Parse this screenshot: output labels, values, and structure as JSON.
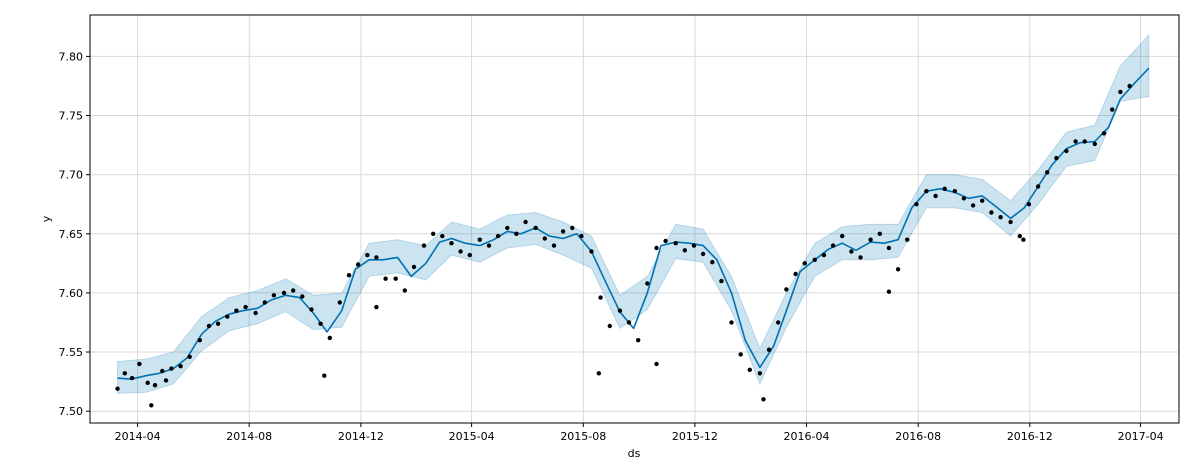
{
  "chart_data": {
    "type": "line",
    "title": "",
    "xlabel": "ds",
    "ylabel": "y",
    "xlim": [
      "2014-02-08",
      "2017-05-13"
    ],
    "ylim": [
      7.49,
      7.835
    ],
    "grid": true,
    "legend": "none",
    "colors": {
      "forecast_line": "#0072B2",
      "uncertainty_band": "#0072B2",
      "observations": "#000000",
      "grid": "#d9d9d9",
      "frame": "#000000"
    },
    "x_ticks": [
      {
        "date": "2014-04-01",
        "label": "2014-04"
      },
      {
        "date": "2014-08-01",
        "label": "2014-08"
      },
      {
        "date": "2014-12-01",
        "label": "2014-12"
      },
      {
        "date": "2015-04-01",
        "label": "2015-04"
      },
      {
        "date": "2015-08-01",
        "label": "2015-08"
      },
      {
        "date": "2015-12-01",
        "label": "2015-12"
      },
      {
        "date": "2016-04-01",
        "label": "2016-04"
      },
      {
        "date": "2016-08-01",
        "label": "2016-08"
      },
      {
        "date": "2016-12-01",
        "label": "2016-12"
      },
      {
        "date": "2017-04-01",
        "label": "2017-04"
      }
    ],
    "y_ticks": [
      {
        "value": 7.5,
        "label": "7.50"
      },
      {
        "value": 7.55,
        "label": "7.55"
      },
      {
        "value": 7.6,
        "label": "7.60"
      },
      {
        "value": 7.65,
        "label": "7.65"
      },
      {
        "value": 7.7,
        "label": "7.70"
      },
      {
        "value": 7.75,
        "label": "7.75"
      },
      {
        "value": 7.8,
        "label": "7.80"
      }
    ],
    "series": [
      {
        "type": "line",
        "x": [
          "2014-03-10",
          "2014-03-25",
          "2014-04-10",
          "2014-04-25",
          "2014-05-10",
          "2014-05-25",
          "2014-06-10",
          "2014-06-25",
          "2014-07-10",
          "2014-07-25",
          "2014-08-10",
          "2014-08-25",
          "2014-09-10",
          "2014-09-25",
          "2014-10-10",
          "2014-10-25",
          "2014-11-10",
          "2014-11-25",
          "2014-12-10",
          "2014-12-25",
          "2015-01-10",
          "2015-01-25",
          "2015-02-10",
          "2015-02-25",
          "2015-03-10",
          "2015-03-25",
          "2015-04-10",
          "2015-04-25",
          "2015-05-10",
          "2015-05-25",
          "2015-06-10",
          "2015-06-25",
          "2015-07-10",
          "2015-07-25",
          "2015-08-10",
          "2015-08-25",
          "2015-09-10",
          "2015-09-25",
          "2015-10-10",
          "2015-10-25",
          "2015-11-10",
          "2015-11-25",
          "2015-12-10",
          "2015-12-25",
          "2016-01-10",
          "2016-01-25",
          "2016-02-10",
          "2016-02-25",
          "2016-03-10",
          "2016-03-25",
          "2016-04-10",
          "2016-04-25",
          "2016-05-10",
          "2016-05-25",
          "2016-06-10",
          "2016-06-25",
          "2016-07-10",
          "2016-07-25",
          "2016-08-10",
          "2016-08-25",
          "2016-09-10",
          "2016-09-25",
          "2016-10-10",
          "2016-10-25",
          "2016-11-10",
          "2016-11-25",
          "2016-12-10",
          "2016-12-25",
          "2017-01-10",
          "2017-01-25",
          "2017-02-10",
          "2017-02-25",
          "2017-03-10",
          "2017-03-25",
          "2017-04-10"
        ],
        "y": [
          7.528,
          7.527,
          7.53,
          7.532,
          7.536,
          7.545,
          7.565,
          7.576,
          7.582,
          7.585,
          7.587,
          7.594,
          7.598,
          7.596,
          7.583,
          7.567,
          7.585,
          7.62,
          7.628,
          7.628,
          7.63,
          7.614,
          7.625,
          7.643,
          7.646,
          7.642,
          7.64,
          7.645,
          7.652,
          7.65,
          7.655,
          7.648,
          7.646,
          7.65,
          7.635,
          7.61,
          7.584,
          7.57,
          7.6,
          7.64,
          7.643,
          7.642,
          7.64,
          7.628,
          7.6,
          7.56,
          7.537,
          7.555,
          7.585,
          7.618,
          7.628,
          7.637,
          7.642,
          7.636,
          7.643,
          7.642,
          7.645,
          7.672,
          7.686,
          7.688,
          7.685,
          7.68,
          7.682,
          7.673,
          7.663,
          7.672,
          7.69,
          7.708,
          7.722,
          7.727,
          7.728,
          7.74,
          7.764,
          7.777,
          7.79
        ]
      },
      {
        "type": "area",
        "x": [
          "2014-03-10",
          "2014-04-10",
          "2014-05-10",
          "2014-06-10",
          "2014-07-10",
          "2014-08-10",
          "2014-09-10",
          "2014-10-10",
          "2014-11-10",
          "2014-12-10",
          "2015-01-10",
          "2015-02-10",
          "2015-03-10",
          "2015-04-10",
          "2015-05-10",
          "2015-06-10",
          "2015-07-10",
          "2015-08-10",
          "2015-09-10",
          "2015-10-10",
          "2015-11-10",
          "2015-12-10",
          "2016-01-10",
          "2016-02-10",
          "2016-03-10",
          "2016-04-10",
          "2016-05-10",
          "2016-06-10",
          "2016-07-10",
          "2016-08-10",
          "2016-09-10",
          "2016-10-10",
          "2016-11-10",
          "2016-12-10",
          "2017-01-10",
          "2017-02-10",
          "2017-03-10",
          "2017-04-10"
        ],
        "upper": [
          7.542,
          7.544,
          7.55,
          7.58,
          7.596,
          7.602,
          7.612,
          7.598,
          7.6,
          7.642,
          7.645,
          7.64,
          7.66,
          7.654,
          7.666,
          7.668,
          7.66,
          7.648,
          7.598,
          7.614,
          7.658,
          7.654,
          7.614,
          7.553,
          7.6,
          7.642,
          7.656,
          7.658,
          7.658,
          7.7,
          7.7,
          7.696,
          7.678,
          7.704,
          7.736,
          7.742,
          7.792,
          7.818
        ],
        "lower": [
          7.515,
          7.516,
          7.523,
          7.551,
          7.568,
          7.574,
          7.584,
          7.569,
          7.571,
          7.614,
          7.617,
          7.611,
          7.632,
          7.626,
          7.638,
          7.641,
          7.632,
          7.621,
          7.57,
          7.586,
          7.629,
          7.626,
          7.585,
          7.523,
          7.571,
          7.614,
          7.628,
          7.628,
          7.63,
          7.672,
          7.672,
          7.668,
          7.648,
          7.675,
          7.707,
          7.712,
          7.762,
          7.766
        ]
      },
      {
        "type": "scatter",
        "x": [
          "2014-03-10",
          "2014-03-18",
          "2014-03-26",
          "2014-04-03",
          "2014-04-12",
          "2014-04-20",
          "2014-04-28",
          "2014-05-08",
          "2014-05-18",
          "2014-05-28",
          "2014-06-08",
          "2014-06-18",
          "2014-06-28",
          "2014-07-08",
          "2014-07-18",
          "2014-07-28",
          "2014-08-08",
          "2014-08-18",
          "2014-08-28",
          "2014-09-08",
          "2014-09-18",
          "2014-09-28",
          "2014-10-08",
          "2014-10-18",
          "2014-10-28",
          "2014-11-08",
          "2014-11-18",
          "2014-11-28",
          "2014-12-08",
          "2014-12-18",
          "2014-12-28",
          "2015-01-08",
          "2015-01-18",
          "2015-01-28",
          "2015-02-08",
          "2015-02-18",
          "2015-02-28",
          "2015-03-10",
          "2015-03-20",
          "2015-03-30",
          "2015-04-10",
          "2015-04-20",
          "2015-04-30",
          "2015-05-10",
          "2015-05-20",
          "2015-05-30",
          "2015-06-10",
          "2015-06-20",
          "2015-06-30",
          "2015-07-10",
          "2015-07-20",
          "2015-07-30",
          "2015-08-10",
          "2015-08-20",
          "2015-08-30",
          "2015-09-10",
          "2015-09-20",
          "2015-09-30",
          "2015-10-10",
          "2015-10-20",
          "2015-10-30",
          "2015-11-10",
          "2015-11-20",
          "2015-11-30",
          "2015-12-10",
          "2015-12-20",
          "2015-12-30",
          "2016-01-10",
          "2016-01-20",
          "2016-01-30",
          "2016-02-10",
          "2016-02-20",
          "2016-03-01",
          "2016-03-10",
          "2016-03-20",
          "2016-03-30",
          "2016-04-10",
          "2016-04-20",
          "2016-04-30",
          "2016-05-10",
          "2016-05-20",
          "2016-05-30",
          "2016-06-10",
          "2016-06-20",
          "2016-06-30",
          "2016-07-10",
          "2016-07-20",
          "2016-07-30",
          "2016-08-10",
          "2016-08-20",
          "2016-08-30",
          "2016-09-10",
          "2016-09-20",
          "2016-09-30",
          "2016-10-10",
          "2016-10-20",
          "2016-10-30",
          "2016-11-10",
          "2016-11-20",
          "2016-11-30",
          "2016-12-10",
          "2016-12-20",
          "2016-12-30",
          "2017-01-10",
          "2017-01-20",
          "2017-01-30",
          "2017-02-10",
          "2017-02-20",
          "2017-03-01",
          "2017-03-10",
          "2017-03-20",
          "2014-04-16",
          "2014-10-22",
          "2014-12-18",
          "2015-08-18",
          "2016-02-14",
          "2016-06-30",
          "2014-05-02",
          "2015-10-20",
          "2016-11-24"
        ],
        "y": [
          7.519,
          7.532,
          7.528,
          7.54,
          7.524,
          7.522,
          7.534,
          7.536,
          7.538,
          7.546,
          7.56,
          7.572,
          7.574,
          7.58,
          7.585,
          7.588,
          7.583,
          7.592,
          7.598,
          7.6,
          7.602,
          7.597,
          7.586,
          7.574,
          7.562,
          7.592,
          7.615,
          7.624,
          7.632,
          7.63,
          7.612,
          7.612,
          7.602,
          7.622,
          7.64,
          7.65,
          7.648,
          7.642,
          7.635,
          7.632,
          7.645,
          7.64,
          7.648,
          7.655,
          7.65,
          7.66,
          7.655,
          7.646,
          7.64,
          7.652,
          7.655,
          7.648,
          7.635,
          7.596,
          7.572,
          7.585,
          7.575,
          7.56,
          7.608,
          7.638,
          7.644,
          7.642,
          7.636,
          7.64,
          7.633,
          7.626,
          7.61,
          7.575,
          7.548,
          7.535,
          7.532,
          7.552,
          7.575,
          7.603,
          7.616,
          7.625,
          7.628,
          7.632,
          7.64,
          7.648,
          7.635,
          7.63,
          7.645,
          7.65,
          7.638,
          7.62,
          7.645,
          7.675,
          7.686,
          7.682,
          7.688,
          7.686,
          7.68,
          7.674,
          7.678,
          7.668,
          7.664,
          7.66,
          7.648,
          7.675,
          7.69,
          7.702,
          7.714,
          7.72,
          7.728,
          7.728,
          7.726,
          7.735,
          7.755,
          7.77,
          7.775,
          7.505,
          7.53,
          7.588,
          7.532,
          7.51,
          7.601,
          7.526,
          7.54,
          7.645
        ]
      }
    ]
  }
}
